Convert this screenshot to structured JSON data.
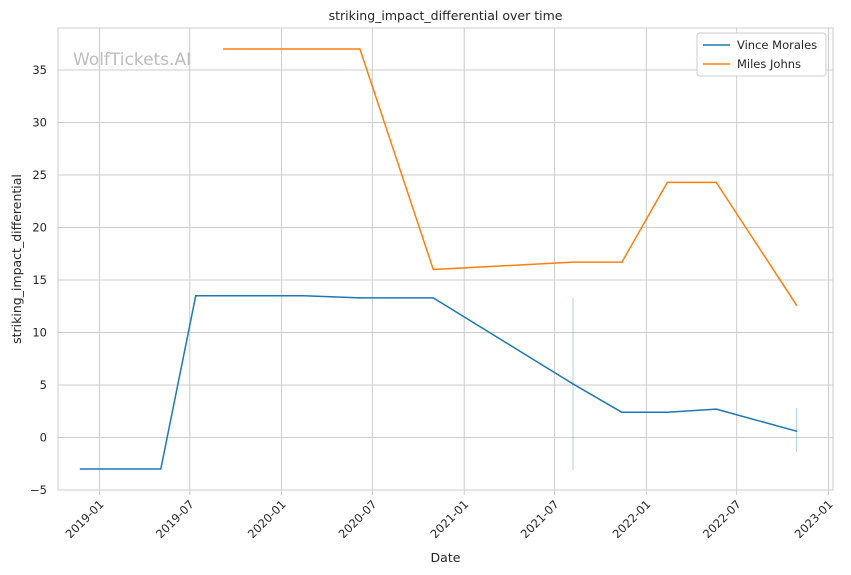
{
  "chart_data": {
    "type": "line",
    "title": "striking_impact_differential over time",
    "xlabel": "Date",
    "ylabel": "striking_impact_differential",
    "watermark": "WolfTickets.AI",
    "xlim": [
      "2018-10-10",
      "2023-01-10"
    ],
    "ylim": [
      -5,
      39
    ],
    "grid": true,
    "legend_position": "top-right",
    "x_ticks": [
      {
        "date": "2019-01-01",
        "label": "2019-01"
      },
      {
        "date": "2019-07-01",
        "label": "2019-07"
      },
      {
        "date": "2020-01-01",
        "label": "2020-01"
      },
      {
        "date": "2020-07-01",
        "label": "2020-07"
      },
      {
        "date": "2021-01-01",
        "label": "2021-01"
      },
      {
        "date": "2021-07-01",
        "label": "2021-07"
      },
      {
        "date": "2022-01-01",
        "label": "2022-01"
      },
      {
        "date": "2022-07-01",
        "label": "2022-07"
      },
      {
        "date": "2023-01-01",
        "label": "2023-01"
      }
    ],
    "y_ticks": [
      -5,
      0,
      5,
      10,
      15,
      20,
      25,
      30,
      35
    ],
    "series": [
      {
        "name": "Vince Morales",
        "color": "#1f77b4",
        "points": [
          {
            "x": "2018-11-24",
            "y": -3.0
          },
          {
            "x": "2019-05-04",
            "y": -3.0
          },
          {
            "x": "2019-07-13",
            "y": 13.5
          },
          {
            "x": "2020-02-15",
            "y": 13.5
          },
          {
            "x": "2020-06-06",
            "y": 13.3
          },
          {
            "x": "2020-10-31",
            "y": 13.3
          },
          {
            "x": "2021-08-07",
            "y": 5.1
          },
          {
            "x": "2021-11-13",
            "y": 2.4
          },
          {
            "x": "2022-02-12",
            "y": 2.4
          },
          {
            "x": "2022-05-21",
            "y": 2.7
          },
          {
            "x": "2022-10-29",
            "y": 0.6
          }
        ]
      },
      {
        "name": "Miles Johns",
        "color": "#ff7f0e",
        "points": [
          {
            "x": "2019-09-07",
            "y": 37.0
          },
          {
            "x": "2020-06-06",
            "y": 37.0
          },
          {
            "x": "2020-10-31",
            "y": 16.0
          },
          {
            "x": "2021-08-07",
            "y": 16.7
          },
          {
            "x": "2021-11-13",
            "y": 16.7
          },
          {
            "x": "2022-02-12",
            "y": 24.3
          },
          {
            "x": "2022-05-21",
            "y": 24.3
          },
          {
            "x": "2022-10-29",
            "y": 12.6
          }
        ]
      }
    ],
    "error_bars": [
      {
        "series": "Vince Morales",
        "x": "2021-08-07",
        "y_low": -3.1,
        "y_high": 13.3
      },
      {
        "series": "Vince Morales",
        "x": "2022-10-29",
        "y_low": -1.4,
        "y_high": 2.8
      }
    ]
  }
}
